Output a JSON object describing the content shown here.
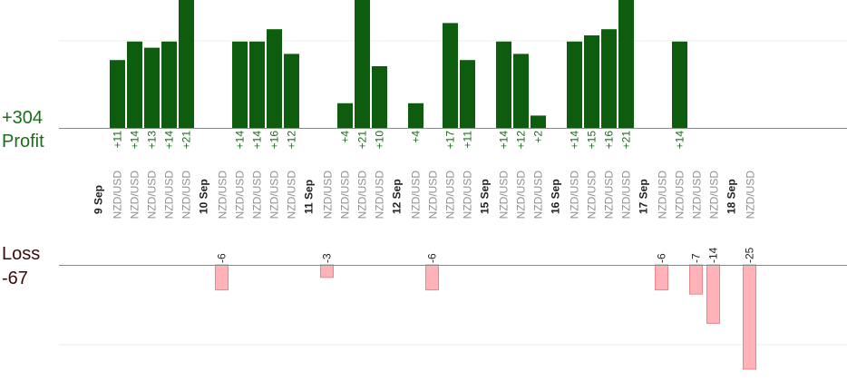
{
  "summary": {
    "profit_total": "+304",
    "profit_label": "Profit",
    "loss_label": "Loss",
    "loss_total": "-67"
  },
  "colors": {
    "profit_bar": "#0e5c0e",
    "loss_bar": "#ffb3b8",
    "loss_bar_stroke": "#e8868c",
    "baseline": "#888888",
    "grid": "#eeeeee",
    "profit_text": "#1a6e1a"
  },
  "chart_data": {
    "type": "bar",
    "title": "",
    "xlabel": "",
    "ylabel": "",
    "grid": true,
    "trades": [
      {
        "date": "9 Sep",
        "pair": "NZD/USD",
        "value": 11,
        "label": "+11"
      },
      {
        "pair": "NZD/USD",
        "value": 14,
        "label": "+14"
      },
      {
        "pair": "NZD/USD",
        "value": 13,
        "label": "+13"
      },
      {
        "pair": "NZD/USD",
        "value": 14,
        "label": "+14"
      },
      {
        "pair": "NZD/USD",
        "value": 21,
        "label": "+21"
      },
      {
        "date": "10 Sep",
        "pair": "NZD/USD",
        "value": -6,
        "label": "-6"
      },
      {
        "pair": "NZD/USD",
        "value": 14,
        "label": "+14"
      },
      {
        "pair": "NZD/USD",
        "value": 14,
        "label": "+14"
      },
      {
        "pair": "NZD/USD",
        "value": 16,
        "label": "+16"
      },
      {
        "pair": "NZD/USD",
        "value": 12,
        "label": "+12"
      },
      {
        "date": "11 Sep",
        "pair": "NZD/USD",
        "value": -3,
        "label": "-3"
      },
      {
        "pair": "NZD/USD",
        "value": 4,
        "label": "+4"
      },
      {
        "pair": "NZD/USD",
        "value": 21,
        "label": "+21"
      },
      {
        "pair": "NZD/USD",
        "value": 10,
        "label": "+10"
      },
      {
        "date": "12 Sep",
        "pair": "NZD/USD",
        "value": 4,
        "label": "+4"
      },
      {
        "pair": "NZD/USD",
        "value": -6,
        "label": "-6"
      },
      {
        "pair": "NZD/USD",
        "value": 17,
        "label": "+17"
      },
      {
        "pair": "NZD/USD",
        "value": 11,
        "label": "+11"
      },
      {
        "date": "15 Sep",
        "pair": "NZD/USD",
        "value": 14,
        "label": "+14"
      },
      {
        "pair": "NZD/USD",
        "value": 12,
        "label": "+12"
      },
      {
        "pair": "NZD/USD",
        "value": 2,
        "label": "+2"
      },
      {
        "date": "16 Sep",
        "pair": "NZD/USD",
        "value": 14,
        "label": "+14"
      },
      {
        "pair": "NZD/USD",
        "value": 15,
        "label": "+15"
      },
      {
        "pair": "NZD/USD",
        "value": 16,
        "label": "+16"
      },
      {
        "pair": "NZD/USD",
        "value": 21,
        "label": "+21"
      },
      {
        "date": "17 Sep",
        "pair": "NZD/USD",
        "value": -6,
        "label": "-6"
      },
      {
        "pair": "NZD/USD",
        "value": 14,
        "label": "+14"
      },
      {
        "pair": "NZD/USD",
        "value": -7,
        "label": "-7"
      },
      {
        "pair": "NZD/USD",
        "value": -14,
        "label": "-14"
      },
      {
        "date": "18 Sep",
        "pair": "NZD/USD",
        "value": -25,
        "label": "-25"
      }
    ]
  }
}
